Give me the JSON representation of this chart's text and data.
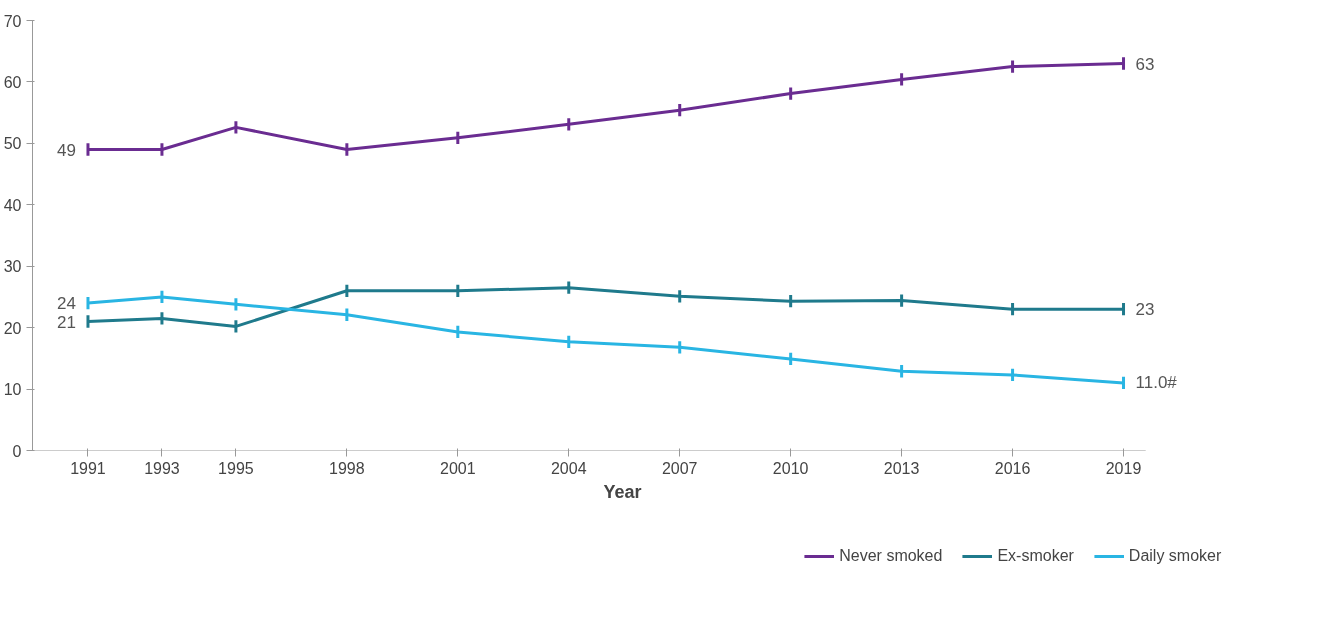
{
  "chart_data": {
    "type": "line",
    "xlabel": "Year",
    "x": [
      1991,
      1993,
      1995,
      1998,
      2001,
      2004,
      2007,
      2010,
      2013,
      2016,
      2019
    ],
    "xlim": [
      1989.5,
      2019.6
    ],
    "xticks": [
      1991,
      1993,
      1995,
      1998,
      2001,
      2004,
      2007,
      2010,
      2013,
      2016,
      2019
    ],
    "ylim": [
      0,
      70
    ],
    "yticks": [
      0,
      10,
      20,
      30,
      40,
      50,
      60,
      70
    ],
    "grid": false,
    "legend": "bottom",
    "marker": "none",
    "line_style": "solid",
    "series": [
      {
        "name": "Never smoked",
        "color": "#6a2c91",
        "values": [
          49,
          49,
          52.6,
          49,
          50.9,
          53.1,
          55.4,
          58.1,
          60.4,
          62.5,
          63
        ],
        "errors": [
          1,
          1,
          1,
          1,
          1,
          1,
          1,
          1,
          1,
          1,
          1
        ],
        "value_labels": [
          "49",
          null,
          null,
          null,
          null,
          null,
          null,
          null,
          null,
          null,
          "63"
        ]
      },
      {
        "name": "Ex-smoker",
        "color": "#1f7a8c",
        "values": [
          21,
          21.5,
          20.2,
          26,
          26,
          26.5,
          25.1,
          24.3,
          24.4,
          23,
          23
        ],
        "errors": [
          1,
          1,
          1,
          1,
          1,
          1,
          1,
          1,
          1,
          1,
          1
        ],
        "value_labels": [
          "21",
          null,
          null,
          null,
          null,
          null,
          null,
          null,
          null,
          null,
          "23"
        ]
      },
      {
        "name": "Daily smoker",
        "color": "#29b5e3",
        "values": [
          24,
          25,
          23.8,
          22.1,
          19.3,
          17.7,
          16.8,
          14.9,
          12.9,
          12.3,
          11.0
        ],
        "errors": [
          1,
          1,
          1,
          1,
          1,
          1,
          1,
          1,
          1,
          1,
          1
        ],
        "value_labels": [
          "24",
          null,
          null,
          null,
          null,
          null,
          null,
          null,
          null,
          null,
          "11.0#"
        ]
      }
    ]
  }
}
